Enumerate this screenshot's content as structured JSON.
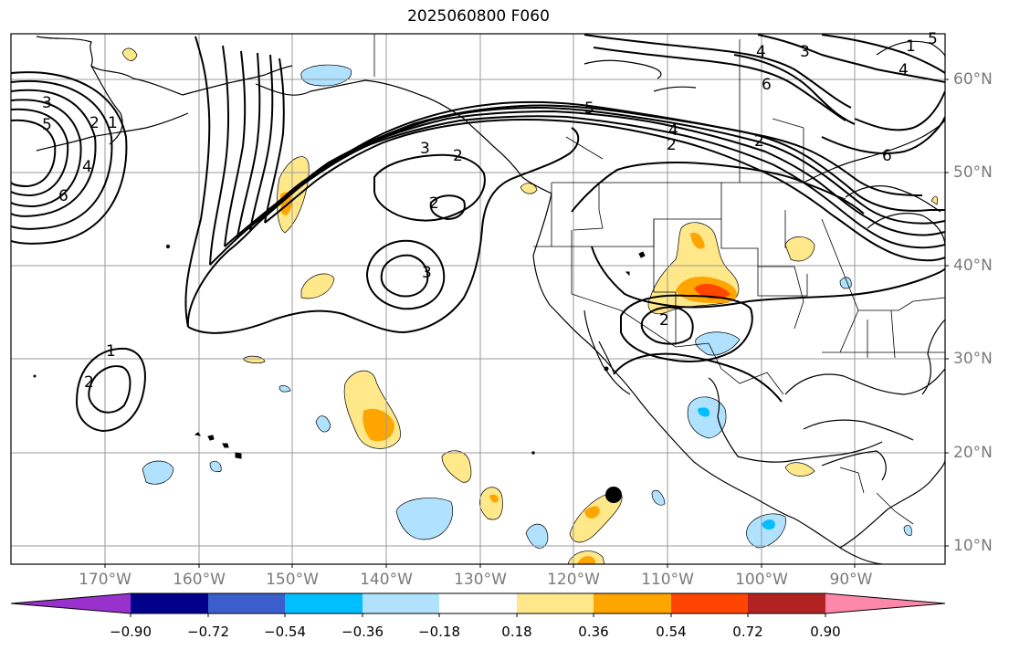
{
  "title": "2025060800 F060",
  "lon_labels": [
    "170°W",
    "160°W",
    "150°W",
    "140°W",
    "130°W",
    "120°W",
    "110°W",
    "100°W",
    "90°W"
  ],
  "lat_labels": [
    "60°N",
    "50°N",
    "40°N",
    "30°N",
    "20°N",
    "10°N"
  ],
  "colorbar": {
    "colors": [
      "#9932cc",
      "#00008b",
      "#3a5fcd",
      "#00bfff",
      "#b0e2ff",
      "#ffffff",
      "#ffe88a",
      "#ffa500",
      "#ff4500",
      "#b22222",
      "#ff88aa"
    ],
    "tick_labels": [
      "−0.90",
      "−0.72",
      "−0.54",
      "−0.36",
      "−0.18",
      "0.18",
      "0.36",
      "0.54",
      "0.72",
      "0.90"
    ]
  },
  "contour_labels": [
    "3",
    "5",
    "2",
    "1",
    "4",
    "6",
    "2",
    "1",
    "3",
    "2",
    "3",
    "2",
    "5",
    "4",
    "2",
    "3",
    "4",
    "6",
    "6",
    "5",
    "4",
    "1",
    "2",
    "2"
  ],
  "marker": "storm-position-dot"
}
